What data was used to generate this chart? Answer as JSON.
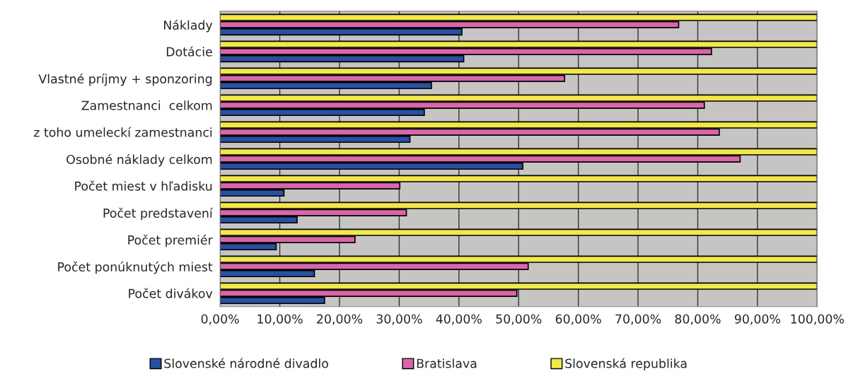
{
  "chart_data": {
    "type": "bar",
    "orientation": "horizontal",
    "categories": [
      "Náklady",
      "Dotácie",
      "Vlastné príjmy + sponzoring",
      "Zamestnanci  celkom",
      "z toho umeleckí zamestnanci",
      "Osobné náklady celkom",
      "Počet miest v hľadisku",
      "Počet predstavení",
      "Počet premiér",
      "Počet ponúknutých miest",
      "Počet divákov"
    ],
    "series": [
      {
        "name": "Slovenské národné divadlo",
        "color": "#2a4f9e",
        "values": [
          40.5,
          40.8,
          35.4,
          34.2,
          31.8,
          50.7,
          10.7,
          12.9,
          9.4,
          15.8,
          17.5
        ]
      },
      {
        "name": "Bratislava",
        "color": "#d966a8",
        "values": [
          76.8,
          82.3,
          57.7,
          81.1,
          83.6,
          87.1,
          30.1,
          31.2,
          22.6,
          51.6,
          49.7
        ]
      },
      {
        "name": "Slovenská republika",
        "color": "#f2e84a",
        "values": [
          100,
          100,
          100,
          100,
          100,
          100,
          100,
          100,
          100,
          100,
          100
        ]
      }
    ],
    "xlim": [
      0,
      100
    ],
    "xticks": [
      {
        "value": 0,
        "label": "0,00%"
      },
      {
        "value": 10,
        "label": "10,00%"
      },
      {
        "value": 20,
        "label": "20,00%"
      },
      {
        "value": 30,
        "label": "30,00%"
      },
      {
        "value": 40,
        "label": "40,00%"
      },
      {
        "value": 50,
        "label": "50,00%"
      },
      {
        "value": 60,
        "label": "60,00%"
      },
      {
        "value": 70,
        "label": "70,00%"
      },
      {
        "value": 80,
        "label": "80,00%"
      },
      {
        "value": 90,
        "label": "90,00%"
      },
      {
        "value": 100,
        "label": "100,00%"
      }
    ],
    "grid": "x",
    "legend": "bottom"
  }
}
